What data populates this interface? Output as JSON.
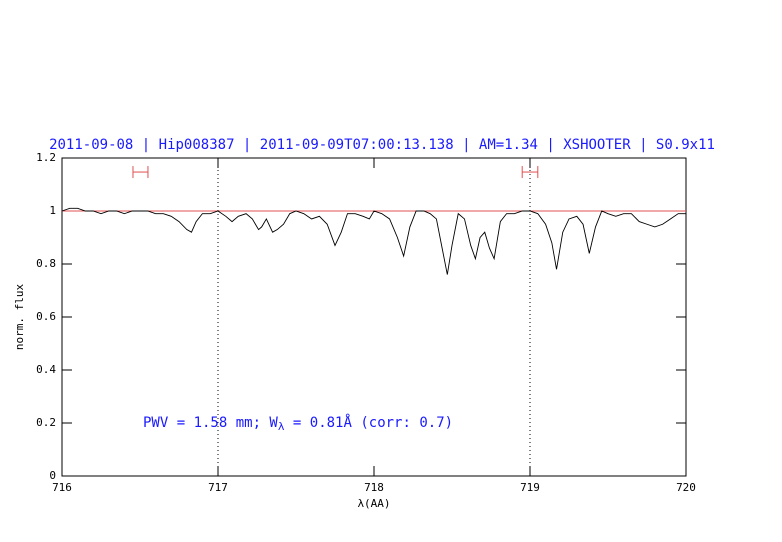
{
  "chart_data": {
    "type": "line",
    "title": "2011-09-08 | Hip008387 | 2011-09-09T07:00:13.138 | AM=1.34 | XSHOOTER | S0.9x11",
    "x_label": "λ(AA)",
    "y_label": "norm. flux",
    "annotation": [
      "PWV = 1.58 mm; W",
      "λ",
      " = 0.81Å (corr: 0.7)"
    ],
    "x": [
      716.0,
      716.05,
      716.1,
      716.15,
      716.2,
      716.25,
      716.3,
      716.35,
      716.4,
      716.45,
      716.5,
      716.55,
      716.6,
      716.65,
      716.7,
      716.75,
      716.8,
      716.83,
      716.86,
      716.9,
      716.95,
      717.0,
      717.05,
      717.09,
      717.13,
      717.18,
      717.22,
      717.26,
      717.28,
      717.31,
      717.35,
      717.38,
      717.42,
      717.46,
      717.5,
      717.55,
      717.6,
      717.65,
      717.7,
      717.75,
      717.79,
      717.83,
      717.88,
      717.93,
      717.97,
      718.0,
      718.05,
      718.1,
      718.15,
      718.19,
      718.23,
      718.27,
      718.32,
      718.36,
      718.4,
      718.44,
      718.47,
      718.5,
      718.54,
      718.58,
      718.62,
      718.65,
      718.68,
      718.71,
      718.74,
      718.77,
      718.81,
      718.85,
      718.9,
      718.95,
      719.0,
      719.05,
      719.1,
      719.14,
      719.17,
      719.21,
      719.25,
      719.3,
      719.34,
      719.38,
      719.42,
      719.46,
      719.5,
      719.55,
      719.6,
      719.65,
      719.7,
      719.75,
      719.8,
      719.85,
      719.9,
      719.95,
      720.0
    ],
    "series": [
      {
        "color": "#000000",
        "values": [
          1.0,
          1.01,
          1.01,
          1.0,
          1.0,
          0.99,
          1.0,
          1.0,
          0.99,
          1.0,
          1.0,
          1.0,
          0.99,
          0.99,
          0.98,
          0.96,
          0.93,
          0.92,
          0.96,
          0.99,
          0.99,
          1.0,
          0.98,
          0.96,
          0.98,
          0.99,
          0.97,
          0.93,
          0.94,
          0.97,
          0.92,
          0.93,
          0.95,
          0.99,
          1.0,
          0.99,
          0.97,
          0.98,
          0.95,
          0.87,
          0.92,
          0.99,
          0.99,
          0.98,
          0.97,
          1.0,
          0.99,
          0.97,
          0.9,
          0.83,
          0.94,
          1.0,
          1.0,
          0.99,
          0.97,
          0.85,
          0.76,
          0.87,
          0.99,
          0.97,
          0.87,
          0.82,
          0.9,
          0.92,
          0.86,
          0.82,
          0.96,
          0.99,
          0.99,
          1.0,
          1.0,
          0.99,
          0.95,
          0.88,
          0.78,
          0.92,
          0.97,
          0.98,
          0.95,
          0.84,
          0.94,
          1.0,
          0.99,
          0.98,
          0.99,
          0.99,
          0.96,
          0.95,
          0.94,
          0.95,
          0.97,
          0.99,
          0.99
        ]
      }
    ],
    "reference_line": {
      "value": 1,
      "color": "#e05050"
    },
    "vlines": [
      717,
      719
    ],
    "ranges": [
      {
        "x": [
          716.455,
          716.551
        ],
        "y": 1.147,
        "color": "#e05050"
      },
      {
        "x": [
          718.95,
          719.05
        ],
        "y": 1.147,
        "color": "#e05050"
      }
    ],
    "xlim": [
      716,
      720
    ],
    "xticks": [
      716,
      717,
      718,
      719,
      720
    ],
    "ylim": [
      0,
      1.2
    ],
    "yticks": [
      0,
      0.2,
      0.4,
      0.6,
      0.8,
      1,
      1.2
    ],
    "text_color": "#1a1aff"
  }
}
